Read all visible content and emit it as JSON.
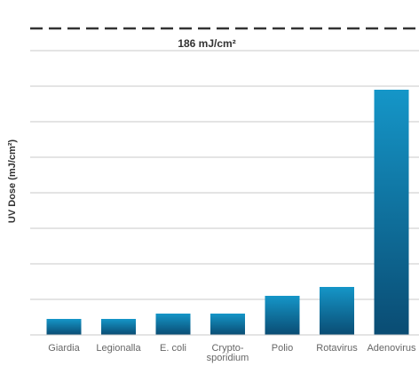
{
  "chart_data": {
    "type": "bar",
    "title": "",
    "xlabel": "",
    "ylabel": "UV Dose (mJ/cm²)",
    "categories": [
      [
        "Giardia"
      ],
      [
        "Legionalla"
      ],
      [
        "E. coli"
      ],
      [
        "Crypto-",
        "sporidium"
      ],
      [
        "Polio"
      ],
      [
        "Rotavirus"
      ],
      [
        "Adenovirus"
      ]
    ],
    "values": [
      9,
      9,
      12,
      12,
      22,
      27,
      138
    ],
    "ylim": [
      0,
      160
    ],
    "grid": true,
    "reference_line": {
      "value": 186,
      "label": "186 mJ/cm²"
    },
    "colors": {
      "bar_top": "#1596c8",
      "bar_bottom": "#0a4c73",
      "grid": "#c8c8c8",
      "reference_line": "#333333"
    }
  }
}
